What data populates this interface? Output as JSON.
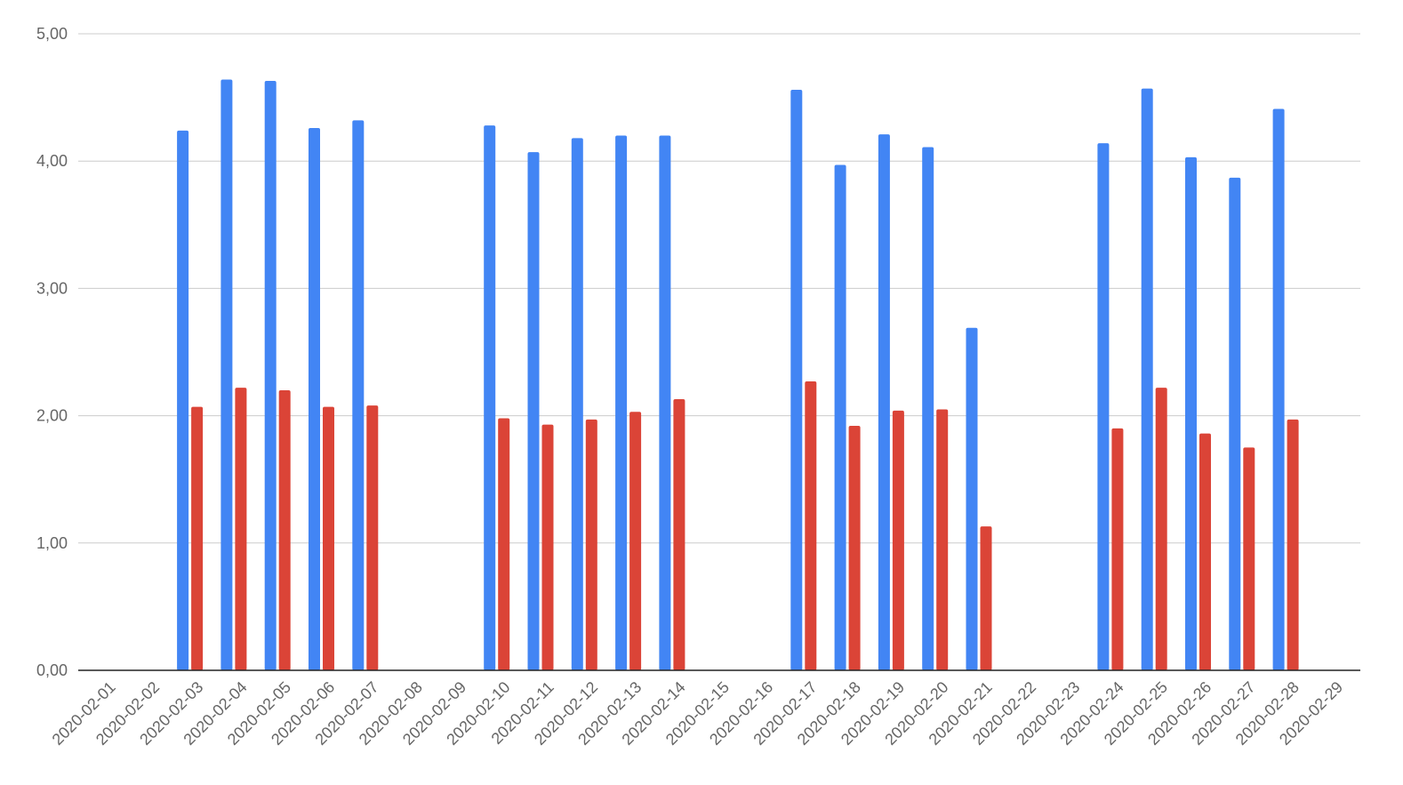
{
  "chart_data": {
    "type": "bar",
    "title": "",
    "xlabel": "",
    "ylabel": "",
    "categories": [
      "2020-02-01",
      "2020-02-02",
      "2020-02-03",
      "2020-02-04",
      "2020-02-05",
      "2020-02-06",
      "2020-02-07",
      "2020-02-08",
      "2020-02-09",
      "2020-02-10",
      "2020-02-11",
      "2020-02-12",
      "2020-02-13",
      "2020-02-14",
      "2020-02-15",
      "2020-02-16",
      "2020-02-17",
      "2020-02-18",
      "2020-02-19",
      "2020-02-20",
      "2020-02-21",
      "2020-02-22",
      "2020-02-23",
      "2020-02-24",
      "2020-02-25",
      "2020-02-26",
      "2020-02-27",
      "2020-02-28",
      "2020-02-29"
    ],
    "series": [
      {
        "color": "#4285f4",
        "values": [
          null,
          null,
          4.24,
          4.64,
          4.63,
          4.26,
          4.32,
          null,
          null,
          4.28,
          4.07,
          4.18,
          4.2,
          4.2,
          null,
          null,
          4.56,
          3.97,
          4.21,
          4.11,
          2.69,
          null,
          null,
          4.14,
          4.57,
          4.03,
          3.87,
          4.41,
          null
        ]
      },
      {
        "color": "#db4437",
        "values": [
          null,
          null,
          2.07,
          2.22,
          2.2,
          2.07,
          2.08,
          null,
          null,
          1.98,
          1.93,
          1.97,
          2.03,
          2.13,
          null,
          null,
          2.27,
          1.92,
          2.04,
          2.05,
          1.13,
          null,
          null,
          1.9,
          2.22,
          1.86,
          1.75,
          1.97,
          null
        ]
      }
    ],
    "ylim": [
      0,
      5
    ],
    "yticks": [
      0,
      1,
      2,
      3,
      4,
      5
    ],
    "ytick_labels": [
      "0,00",
      "1,00",
      "2,00",
      "3,00",
      "4,00",
      "5,00"
    ],
    "grid": true,
    "legend": "none"
  }
}
